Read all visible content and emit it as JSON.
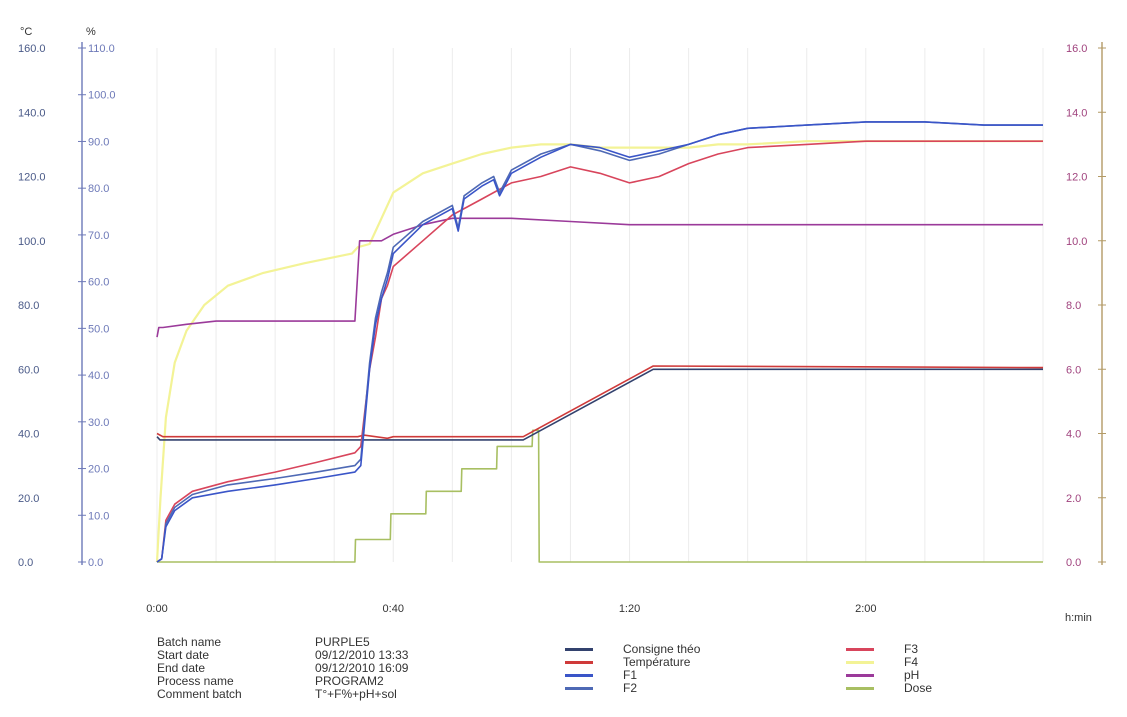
{
  "chart_data": {
    "type": "line",
    "x_unit_label": "h:min",
    "x_ticks": [
      {
        "t": 0,
        "label": "0:00"
      },
      {
        "t": 40,
        "label": "0:40"
      },
      {
        "t": 80,
        "label": "1:20"
      },
      {
        "t": 120,
        "label": "2:00"
      }
    ],
    "xlim": [
      0,
      150
    ],
    "axes": {
      "celsius": {
        "unit": "°C",
        "color": "#4a5a88",
        "ylim": [
          0,
          160
        ],
        "ticks": [
          "0.0",
          "20.0",
          "40.0",
          "60.0",
          "80.0",
          "100.0",
          "120.0",
          "140.0",
          "160.0"
        ]
      },
      "percent": {
        "unit": "%",
        "color": "#6d79b8",
        "ylim": [
          0,
          110
        ],
        "ticks": [
          "0.0",
          "10.0",
          "20.0",
          "30.0",
          "40.0",
          "50.0",
          "60.0",
          "70.0",
          "80.0",
          "90.0",
          "100.0",
          "110.0"
        ]
      },
      "ph": {
        "color": "#a0437e",
        "ylim": [
          0,
          16
        ],
        "ticks": [
          "0.0",
          "2.0",
          "4.0",
          "6.0",
          "8.0",
          "10.0",
          "12.0",
          "14.0",
          "16.0"
        ]
      },
      "dose": {
        "color": "#b39a66",
        "ylim": [
          0,
          16
        ]
      }
    },
    "series": [
      {
        "name": "Consigne théo",
        "color": "#33426e",
        "axis": "celsius",
        "x": [
          0,
          0.5,
          34,
          34.5,
          62,
          84,
          150
        ],
        "y": [
          39,
          38,
          38,
          38,
          38,
          60,
          60
        ]
      },
      {
        "name": "Température",
        "color": "#cf3a3a",
        "axis": "celsius",
        "x": [
          0,
          1,
          34,
          35,
          39,
          40,
          62,
          84,
          150
        ],
        "y": [
          40,
          39,
          39,
          39.5,
          38.5,
          39,
          39,
          61,
          60.5
        ]
      },
      {
        "name": "F1",
        "color": "#3a55c8",
        "axis": "celsius",
        "x": [
          0,
          0.8,
          1.5,
          3,
          6,
          12,
          20,
          27,
          33.5,
          34.5,
          36,
          37,
          38,
          39,
          40,
          45,
          50,
          51,
          52,
          55,
          57,
          58,
          60,
          65,
          70,
          75,
          80,
          85,
          90,
          95,
          100,
          110,
          120,
          130,
          140,
          150
        ],
        "y": [
          0,
          1,
          11,
          16,
          20,
          22,
          24,
          26,
          28,
          30,
          60,
          74,
          82,
          88,
          96,
          105,
          110,
          103,
          113,
          117,
          119,
          114,
          121,
          126,
          130,
          129,
          126,
          128,
          130,
          133,
          135,
          136,
          137,
          137,
          136,
          136
        ]
      },
      {
        "name": "F2",
        "color": "#4e69b5",
        "axis": "celsius",
        "x": [
          0,
          0.8,
          1.5,
          3,
          6,
          12,
          20,
          27,
          33.5,
          34.5,
          36,
          37,
          38,
          39,
          40,
          45,
          50,
          51,
          52,
          55,
          57,
          58,
          60,
          65,
          70,
          75,
          80,
          85,
          90,
          95,
          100,
          110,
          120,
          130,
          140,
          150
        ],
        "y": [
          0,
          1,
          12,
          17,
          21,
          24,
          26,
          28,
          30,
          32,
          62,
          76,
          84,
          90,
          98,
          106,
          111,
          104,
          114,
          118,
          120,
          115,
          122,
          127,
          130,
          128,
          125,
          127,
          130,
          133,
          135,
          136,
          137,
          137,
          136,
          136
        ]
      },
      {
        "name": "F3",
        "color": "#d8455c",
        "axis": "celsius",
        "x": [
          0,
          0.8,
          1.5,
          3,
          6,
          12,
          20,
          27,
          33.5,
          34.5,
          36,
          37,
          38,
          39,
          40,
          45,
          50,
          55,
          60,
          65,
          70,
          75,
          80,
          85,
          90,
          95,
          100,
          110,
          120,
          130,
          140,
          150
        ],
        "y": [
          0,
          1,
          13,
          18,
          22,
          25,
          28,
          31,
          34,
          36,
          60,
          70,
          82,
          86,
          92,
          100,
          108,
          113,
          118,
          120,
          123,
          121,
          118,
          120,
          124,
          127,
          129,
          130,
          131,
          131,
          131,
          131
        ]
      },
      {
        "name": "F4",
        "color": "#f3f396",
        "axis": "celsius",
        "x": [
          0,
          0.6,
          1.5,
          3,
          5,
          8,
          12,
          18,
          25,
          33,
          34,
          36,
          38,
          40,
          45,
          50,
          55,
          60,
          65,
          70,
          75,
          80,
          85,
          90,
          95,
          100,
          110,
          120,
          130,
          140,
          150
        ],
        "y": [
          0,
          20,
          45,
          62,
          72,
          80,
          86,
          90,
          93,
          96,
          98,
          99,
          107,
          115,
          121,
          124,
          127,
          129,
          130,
          130,
          129,
          129,
          129,
          129,
          130,
          130,
          131,
          131,
          131,
          131,
          131
        ]
      },
      {
        "name": "pH",
        "color": "#9b3a9a",
        "axis": "ph",
        "x": [
          0,
          0.3,
          1,
          5,
          10,
          20,
          33.5,
          34.3,
          38,
          40,
          45,
          50,
          60,
          70,
          80,
          90,
          100,
          120,
          150
        ],
        "y": [
          7.0,
          7.3,
          7.3,
          7.4,
          7.5,
          7.5,
          7.5,
          10.0,
          10.0,
          10.2,
          10.5,
          10.7,
          10.7,
          10.6,
          10.5,
          10.5,
          10.5,
          10.5,
          10.5
        ]
      },
      {
        "name": "Dose",
        "color": "#a8bf62",
        "axis": "dose",
        "x": [
          0,
          33.5,
          33.6,
          39.5,
          39.6,
          45.5,
          45.6,
          51.5,
          51.6,
          57.5,
          57.6,
          63.5,
          63.6,
          64.6,
          64.7,
          150
        ],
        "y": [
          0,
          0,
          0.7,
          0.7,
          1.5,
          1.5,
          2.2,
          2.2,
          2.9,
          2.9,
          3.6,
          3.6,
          4.1,
          4.1,
          0,
          0
        ]
      }
    ]
  },
  "info": {
    "rows": [
      {
        "label": "Batch name",
        "value": "PURPLE5"
      },
      {
        "label": "Start date",
        "value": "09/12/2010  13:33"
      },
      {
        "label": "End date",
        "value": "09/12/2010  16:09"
      },
      {
        "label": "Process name",
        "value": "PROGRAM2"
      },
      {
        "label": "Comment batch",
        "value": "T°+F%+pH+sol"
      }
    ]
  },
  "legend": {
    "col1": [
      {
        "label": "Consigne théo",
        "color": "#33426e"
      },
      {
        "label": "Température",
        "color": "#cf3a3a"
      },
      {
        "label": "F1",
        "color": "#3a55c8"
      },
      {
        "label": "F2",
        "color": "#4e69b5"
      }
    ],
    "col2": [
      {
        "label": "F3",
        "color": "#d8455c"
      },
      {
        "label": "F4",
        "color": "#f3f396"
      },
      {
        "label": "pH",
        "color": "#9b3a9a"
      },
      {
        "label": "Dose",
        "color": "#a8bf62"
      }
    ]
  }
}
